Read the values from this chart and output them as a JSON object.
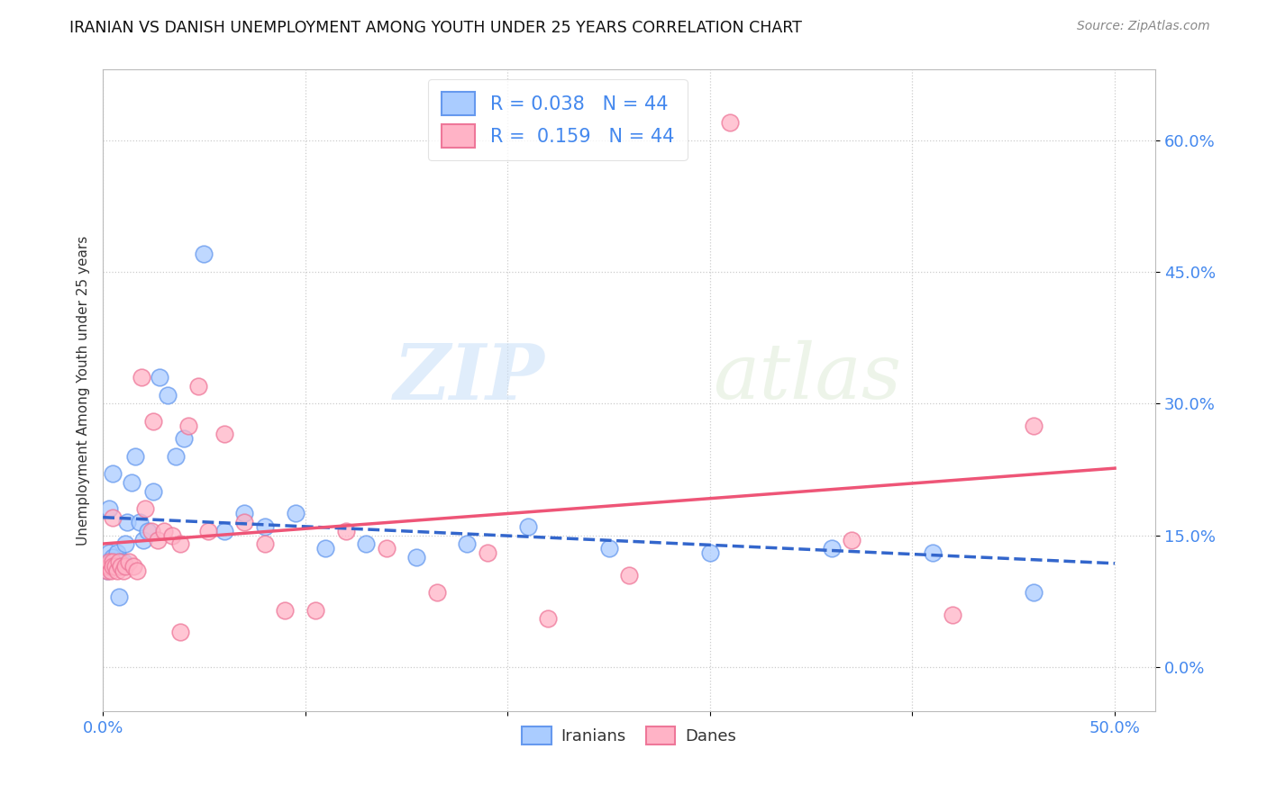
{
  "title": "IRANIAN VS DANISH UNEMPLOYMENT AMONG YOUTH UNDER 25 YEARS CORRELATION CHART",
  "source": "Source: ZipAtlas.com",
  "ylabel": "Unemployment Among Youth under 25 years",
  "xlim": [
    0.0,
    0.52
  ],
  "ylim": [
    -0.05,
    0.68
  ],
  "yticks": [
    0.0,
    0.15,
    0.3,
    0.45,
    0.6
  ],
  "ytick_labels": [
    "0.0%",
    "15.0%",
    "30.0%",
    "45.0%",
    "60.0%"
  ],
  "xticks": [
    0.0,
    0.1,
    0.2,
    0.3,
    0.4,
    0.5
  ],
  "xtick_labels": [
    "0.0%",
    "",
    "",
    "",
    "",
    "50.0%"
  ],
  "legend_iranians": "Iranians",
  "legend_danes": "Danes",
  "R_iranians": "0.038",
  "N_iranians": "44",
  "R_danes": "0.159",
  "N_danes": "44",
  "color_iranian": "#aaccff",
  "color_danish": "#ffb3c6",
  "edge_iranian": "#6699ee",
  "edge_danish": "#ee7799",
  "trendline_iranian_color": "#3366cc",
  "trendline_danish_color": "#ee5577",
  "watermark_zip": "ZIP",
  "watermark_atlas": "atlas",
  "iranians_x": [
    0.001,
    0.002,
    0.002,
    0.003,
    0.003,
    0.004,
    0.004,
    0.005,
    0.006,
    0.007,
    0.007,
    0.008,
    0.009,
    0.01,
    0.011,
    0.012,
    0.014,
    0.016,
    0.018,
    0.02,
    0.022,
    0.025,
    0.028,
    0.032,
    0.036,
    0.04,
    0.05,
    0.06,
    0.07,
    0.08,
    0.095,
    0.11,
    0.13,
    0.155,
    0.18,
    0.21,
    0.25,
    0.3,
    0.36,
    0.41,
    0.46,
    0.005,
    0.003,
    0.008
  ],
  "iranians_y": [
    0.115,
    0.12,
    0.11,
    0.115,
    0.13,
    0.12,
    0.115,
    0.125,
    0.12,
    0.115,
    0.13,
    0.115,
    0.12,
    0.12,
    0.14,
    0.165,
    0.21,
    0.24,
    0.165,
    0.145,
    0.155,
    0.2,
    0.33,
    0.31,
    0.24,
    0.26,
    0.47,
    0.155,
    0.175,
    0.16,
    0.175,
    0.135,
    0.14,
    0.125,
    0.14,
    0.16,
    0.135,
    0.13,
    0.135,
    0.13,
    0.085,
    0.22,
    0.18,
    0.08
  ],
  "danes_x": [
    0.001,
    0.002,
    0.003,
    0.003,
    0.004,
    0.005,
    0.005,
    0.006,
    0.007,
    0.008,
    0.009,
    0.01,
    0.011,
    0.013,
    0.015,
    0.017,
    0.019,
    0.021,
    0.024,
    0.027,
    0.03,
    0.034,
    0.038,
    0.042,
    0.047,
    0.052,
    0.06,
    0.07,
    0.08,
    0.09,
    0.105,
    0.12,
    0.14,
    0.165,
    0.19,
    0.22,
    0.26,
    0.31,
    0.37,
    0.42,
    0.46,
    0.005,
    0.025,
    0.038
  ],
  "danes_y": [
    0.115,
    0.11,
    0.115,
    0.12,
    0.11,
    0.12,
    0.115,
    0.115,
    0.11,
    0.12,
    0.115,
    0.11,
    0.115,
    0.12,
    0.115,
    0.11,
    0.33,
    0.18,
    0.155,
    0.145,
    0.155,
    0.15,
    0.14,
    0.275,
    0.32,
    0.155,
    0.265,
    0.165,
    0.14,
    0.065,
    0.065,
    0.155,
    0.135,
    0.085,
    0.13,
    0.055,
    0.105,
    0.62,
    0.145,
    0.06,
    0.275,
    0.17,
    0.28,
    0.04
  ]
}
